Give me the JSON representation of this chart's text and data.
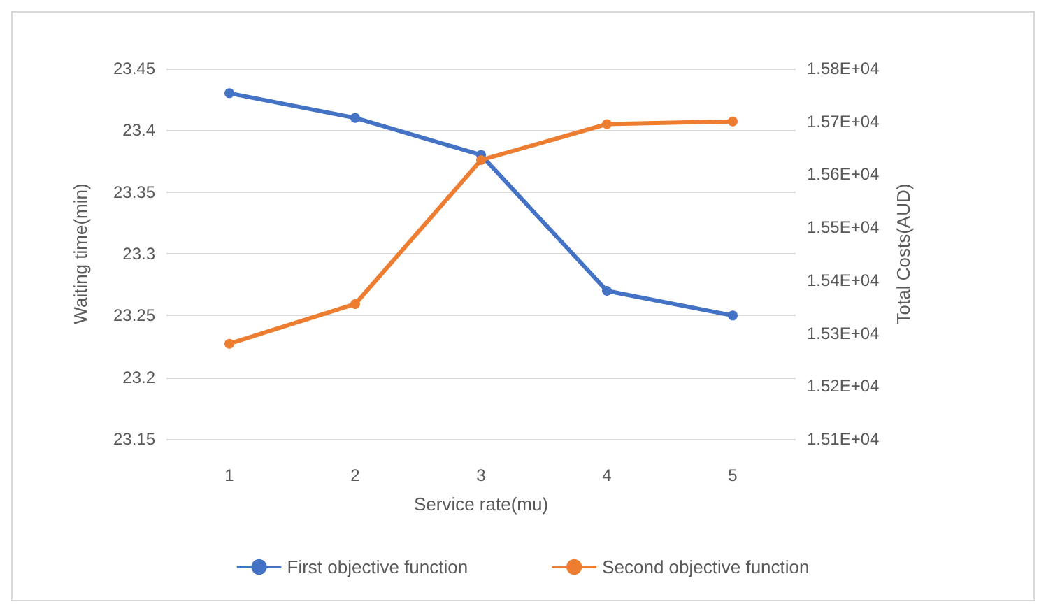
{
  "chart_data": {
    "type": "line",
    "xlabel": "Service rate(mu)",
    "ylabel": "Waiting time(min)",
    "y2label": "Total Costs(AUD)",
    "categories": [
      "1",
      "2",
      "3",
      "4",
      "5"
    ],
    "series": [
      {
        "name": "First objective function",
        "color": "#4472c4",
        "values": [
          23.43,
          23.41,
          23.38,
          23.27,
          23.25
        ]
      },
      {
        "name": "Second objective function",
        "color": "#ed7d31",
        "axis": "y2",
        "values": [
          15280,
          15355,
          15627,
          15695,
          15700
        ]
      }
    ],
    "ylim": [
      23.15,
      23.45
    ],
    "yticks": [
      23.15,
      23.2,
      23.25,
      23.3,
      23.35,
      23.4,
      23.45
    ],
    "y2lim": [
      15100,
      15800
    ],
    "y2ticks": [
      {
        "value": 15100,
        "label": "1.51E+04"
      },
      {
        "value": 15200,
        "label": "1.52E+04"
      },
      {
        "value": 15300,
        "label": "1.53E+04"
      },
      {
        "value": 15400,
        "label": "1.54E+04"
      },
      {
        "value": 15500,
        "label": "1.55E+04"
      },
      {
        "value": 15600,
        "label": "1.56E+04"
      },
      {
        "value": 15700,
        "label": "1.57E+04"
      },
      {
        "value": 15800,
        "label": "1.58E+04"
      }
    ],
    "grid": "y",
    "legend": "bottom",
    "marker": "circle",
    "line_style": "solid"
  }
}
